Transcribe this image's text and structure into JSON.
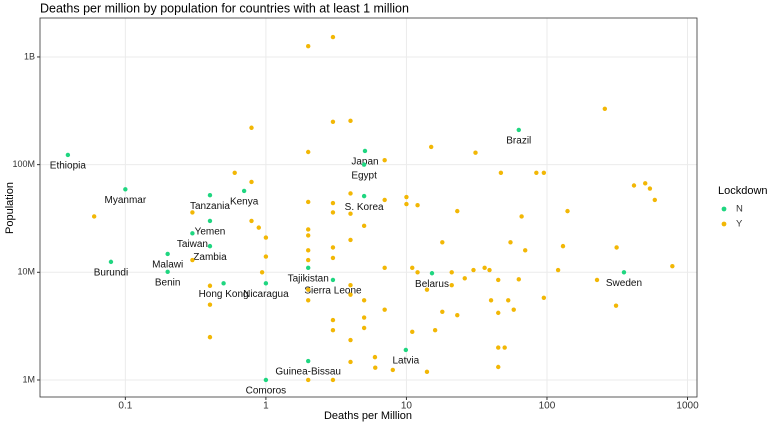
{
  "chart_data": {
    "type": "scatter",
    "title": "Deaths per million by population for countries with at least 1 million",
    "x_label": "Deaths per Million",
    "y_label": "Population",
    "legend_title": "Lockdown",
    "legend_position": "right",
    "xscale": "log",
    "yscale": "log",
    "grid": true,
    "xlim": [
      0.0247,
      1168
    ],
    "ylim": [
      695000,
      2300000000
    ],
    "xticks": [
      0.1,
      1,
      10,
      100,
      1000
    ],
    "yticks": [
      {
        "value": 1000000,
        "label": "1M"
      },
      {
        "value": 10000000,
        "label": "10M"
      },
      {
        "value": 100000000,
        "label": "100M"
      },
      {
        "value": 1000000000,
        "label": "1B"
      }
    ],
    "series": [
      {
        "name": "N",
        "color": "#1fd680",
        "labels": [
          "Ethiopia",
          "Myanmar",
          "Burundi",
          "Tanzania",
          "Kenya",
          "Yemen",
          "Taiwan",
          "Malawi",
          "Zambia",
          "Benin",
          "Hong Kong",
          "Nicaragua",
          "Tajikistan",
          "Sierra Leone",
          "Guinea-Bissau",
          "Comoros",
          "Japan",
          "Egypt",
          "S. Korea",
          "Brazil",
          "Belarus",
          "Latvia",
          "Sweden"
        ],
        "x": [
          0.039,
          0.1,
          0.079,
          0.4,
          0.7,
          0.4,
          0.3,
          0.2,
          0.4,
          0.2,
          0.5,
          1.0,
          2.0,
          3.0,
          2.0,
          1.0,
          5.07,
          5.0,
          5.0,
          63,
          15.2,
          9.9,
          353
        ],
        "values": [
          123000000,
          59000000,
          12500000,
          52000000,
          57000000,
          30000000,
          23000000,
          14800000,
          17500000,
          10100000,
          7900000,
          7900000,
          11000000,
          8500000,
          1500000,
          1000000,
          134000000,
          100000000,
          51000000,
          210000000,
          9800000,
          1900000,
          10000000
        ]
      },
      {
        "name": "Y",
        "color": "#f2b705",
        "x": [
          0.06,
          0.3,
          0.3,
          0.4,
          0.4,
          0.4,
          0.6,
          0.79,
          0.79,
          0.79,
          0.89,
          1.0,
          1.0,
          0.94,
          2.0,
          3.0,
          2.0,
          2.0,
          2.0,
          2.0,
          2.0,
          2.0,
          2.0,
          2.0,
          2.0,
          3.0,
          3.0,
          3.0,
          3.0,
          3.0,
          3.0,
          3.0,
          3.0,
          4.0,
          4.0,
          4.0,
          4.0,
          4.0,
          4.0,
          4.0,
          4.0,
          5.0,
          5.0,
          5.0,
          5.0,
          5.97,
          6.0,
          7.0,
          7.0,
          7.0,
          7.0,
          8.0,
          10,
          10,
          11,
          11,
          12,
          12,
          14,
          14,
          15,
          16,
          18,
          18,
          21,
          21,
          23,
          23,
          26,
          30,
          31,
          36,
          39,
          40,
          45,
          45,
          45,
          45,
          47,
          50,
          53,
          55,
          58,
          63,
          66,
          70,
          84,
          95,
          95,
          120,
          130,
          140,
          227,
          258,
          313,
          310,
          416,
          500,
          540,
          585,
          780
        ],
        "values": [
          33000000,
          36000000,
          13000000,
          7500000,
          5000000,
          2500000,
          84000000,
          220000000,
          69000000,
          30000000,
          26000000,
          21000000,
          14000000,
          10000000,
          1260000000,
          1530000000,
          131000000,
          45000000,
          25000000,
          22000000,
          16000000,
          13000000,
          6900000,
          5500000,
          1000000,
          250000000,
          44000000,
          36000000,
          17000000,
          13600000,
          3600000,
          2900000,
          1000000,
          255000000,
          54000000,
          35000000,
          20000000,
          7600000,
          6200000,
          2350000,
          1470000,
          27000000,
          5500000,
          3800000,
          3040000,
          1630000,
          1300000,
          110000000,
          47000000,
          11000000,
          4500000,
          1240000,
          50000000,
          43000000,
          11000000,
          2800000,
          42000000,
          10000000,
          6900000,
          1190000,
          146000000,
          2900000,
          19000000,
          4300000,
          10000000,
          7600000,
          37000000,
          4000000,
          8800000,
          10500000,
          129000000,
          11000000,
          10500000,
          5500000,
          8500000,
          4200000,
          2000000,
          1320000,
          84000000,
          2000000,
          5500000,
          19000000,
          4500000,
          8600000,
          33000000,
          16000000,
          84000000,
          84000000,
          5800000,
          10500000,
          17500000,
          37000000,
          8500000,
          330000000,
          17000000,
          4900000,
          64000000,
          67000000,
          60000000,
          47000000,
          11400000
        ]
      }
    ]
  }
}
